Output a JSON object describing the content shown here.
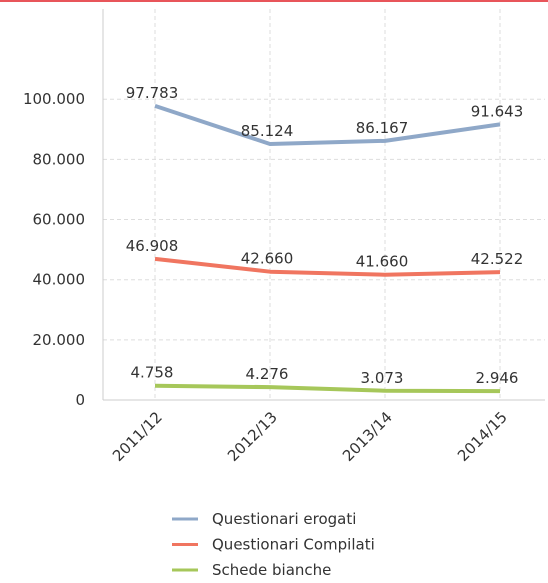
{
  "chart_data": {
    "type": "line",
    "categories": [
      "2011/12",
      "2012/13",
      "2013/14",
      "2014/15"
    ],
    "series": [
      {
        "name": "Questionari erogati",
        "color": "#8fa8c8",
        "values": [
          97783,
          85124,
          86167,
          91643
        ],
        "value_labels": [
          "97.783",
          "85.124",
          "86.167",
          "91.643"
        ]
      },
      {
        "name": "Questionari Compilati",
        "color": "#f07560",
        "values": [
          46908,
          42660,
          41660,
          42522
        ],
        "value_labels": [
          "46.908",
          "42.660",
          "41.660",
          "42.522"
        ]
      },
      {
        "name": "Schede bianche",
        "color": "#a6c75a",
        "values": [
          4758,
          4276,
          3073,
          2946
        ],
        "value_labels": [
          "4.758",
          "4.276",
          "3.073",
          "2.946"
        ]
      }
    ],
    "ylim": [
      0,
      130000
    ],
    "yticks": [
      0,
      {
        "value": 20000,
        "label": "20.000"
      },
      {
        "value": 40000,
        "label": "40.000"
      },
      {
        "value": 60000,
        "label": "60.000"
      },
      {
        "value": 80000,
        "label": "80.000"
      },
      {
        "value": 100000,
        "label": "100.000"
      }
    ],
    "grid": true,
    "legend": "bottom"
  }
}
